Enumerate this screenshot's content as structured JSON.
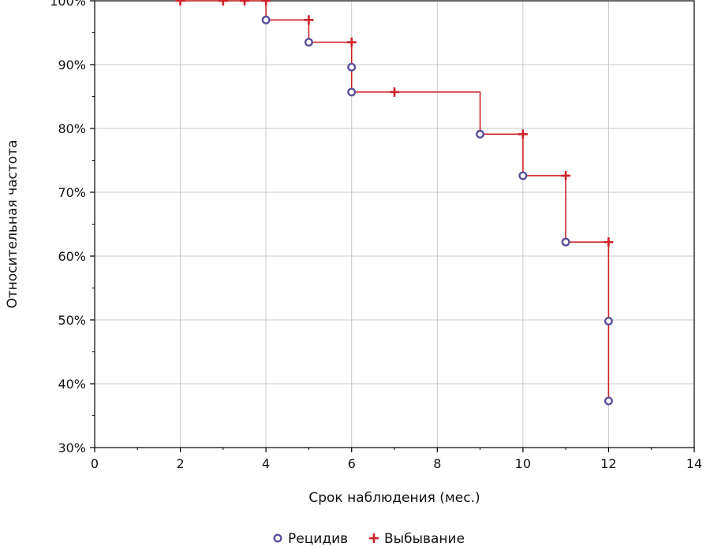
{
  "chart_data": {
    "type": "line",
    "title": "",
    "xlabel": "Срок наблюдения (мес.)",
    "ylabel": "Относительная частота",
    "xlim": [
      0,
      14
    ],
    "ylim": [
      30,
      100
    ],
    "x_ticks": [
      "0",
      "2",
      "4",
      "6",
      "8",
      "10",
      "12",
      "14"
    ],
    "y_ticks": [
      "30%",
      "40%",
      "50%",
      "60%",
      "70%",
      "80%",
      "90%",
      "100%"
    ],
    "grid": true,
    "legend_position": "bottom-center",
    "colors": {
      "line": "#cc2229",
      "event_marker": "#5b5099",
      "censor_marker": "#cc2229",
      "grid": "#c8c8c8"
    },
    "survival_curve": [
      {
        "x": 2,
        "y": 100
      },
      {
        "x": 4,
        "y": 100
      },
      {
        "x": 4,
        "y": 97
      },
      {
        "x": 5,
        "y": 97
      },
      {
        "x": 5,
        "y": 93.5
      },
      {
        "x": 6,
        "y": 93.5
      },
      {
        "x": 6,
        "y": 85.7
      },
      {
        "x": 9,
        "y": 85.7
      },
      {
        "x": 9,
        "y": 79.1
      },
      {
        "x": 10,
        "y": 79.1
      },
      {
        "x": 10,
        "y": 72.6
      },
      {
        "x": 11,
        "y": 72.6
      },
      {
        "x": 11,
        "y": 62.2
      },
      {
        "x": 12,
        "y": 62.2
      },
      {
        "x": 12,
        "y": 37.3
      }
    ],
    "series": [
      {
        "name": "Рецидив",
        "marker": "circle",
        "points": [
          {
            "x": 4,
            "y": 97
          },
          {
            "x": 5,
            "y": 93.5
          },
          {
            "x": 6,
            "y": 89.6
          },
          {
            "x": 6,
            "y": 85.7
          },
          {
            "x": 9,
            "y": 79.1
          },
          {
            "x": 10,
            "y": 72.6
          },
          {
            "x": 11,
            "y": 62.2
          },
          {
            "x": 12,
            "y": 49.8
          },
          {
            "x": 12,
            "y": 37.3
          }
        ]
      },
      {
        "name": "Выбывание",
        "marker": "plus",
        "points": [
          {
            "x": 2,
            "y": 100
          },
          {
            "x": 3,
            "y": 100
          },
          {
            "x": 3.5,
            "y": 100
          },
          {
            "x": 4,
            "y": 100
          },
          {
            "x": 5,
            "y": 97
          },
          {
            "x": 6,
            "y": 93.5
          },
          {
            "x": 7,
            "y": 85.7
          },
          {
            "x": 10,
            "y": 79.1
          },
          {
            "x": 11,
            "y": 72.6
          },
          {
            "x": 12,
            "y": 62.2
          }
        ]
      }
    ]
  }
}
